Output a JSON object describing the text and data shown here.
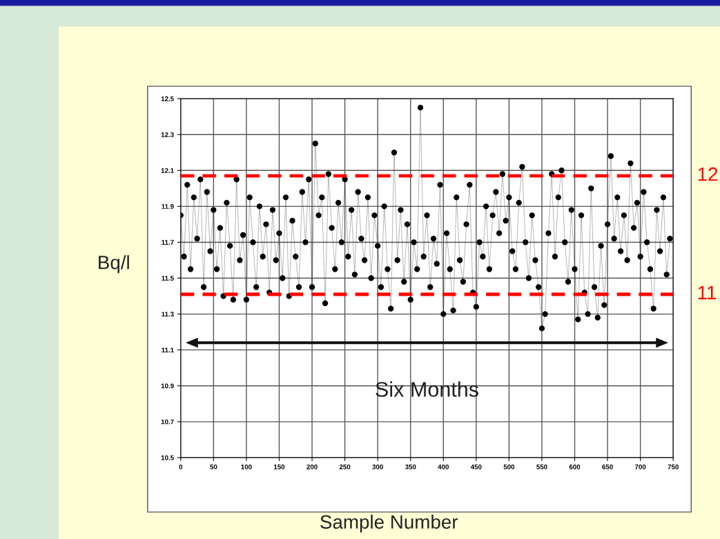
{
  "chart_data": {
    "type": "line",
    "xlabel": "Sample Number",
    "ylabel": "Bq/l",
    "annotations": [
      "Six Months"
    ],
    "x": [
      0,
      5,
      10,
      15,
      20,
      25,
      30,
      35,
      40,
      45,
      50,
      55,
      60,
      65,
      70,
      75,
      80,
      85,
      90,
      95,
      100,
      105,
      110,
      115,
      120,
      125,
      130,
      135,
      140,
      145,
      150,
      155,
      160,
      165,
      170,
      175,
      180,
      185,
      190,
      195,
      200,
      205,
      210,
      215,
      220,
      225,
      230,
      235,
      240,
      245,
      250,
      255,
      260,
      265,
      270,
      275,
      280,
      285,
      290,
      295,
      300,
      305,
      310,
      315,
      320,
      325,
      330,
      335,
      340,
      345,
      350,
      355,
      360,
      365,
      370,
      375,
      380,
      385,
      390,
      395,
      400,
      405,
      410,
      415,
      420,
      425,
      430,
      435,
      440,
      445,
      450,
      455,
      460,
      465,
      470,
      475,
      480,
      485,
      490,
      495,
      500,
      505,
      510,
      515,
      520,
      525,
      530,
      535,
      540,
      545,
      550,
      555,
      560,
      565,
      570,
      575,
      580,
      585,
      590,
      595,
      600,
      605,
      610,
      615,
      620,
      625,
      630,
      635,
      640,
      645,
      650,
      655,
      660,
      665,
      670,
      675,
      680,
      685,
      690,
      695,
      700,
      705,
      710,
      715,
      720,
      725,
      730,
      735,
      740,
      745
    ],
    "series": [
      {
        "color": "#000000",
        "values": [
          11.85,
          11.62,
          12.02,
          11.55,
          11.95,
          11.72,
          12.05,
          11.45,
          11.98,
          11.65,
          11.88,
          11.55,
          11.78,
          11.4,
          11.92,
          11.68,
          11.38,
          12.05,
          11.6,
          11.74,
          11.38,
          11.95,
          11.7,
          11.45,
          11.9,
          11.62,
          11.8,
          11.42,
          11.88,
          11.6,
          11.75,
          11.5,
          11.95,
          11.4,
          11.82,
          11.62,
          11.45,
          11.98,
          11.7,
          12.05,
          11.45,
          12.25,
          11.85,
          11.95,
          11.36,
          12.08,
          11.78,
          11.55,
          11.92,
          11.7,
          12.05,
          11.62,
          11.88,
          11.52,
          11.98,
          11.72,
          11.6,
          11.95,
          11.5,
          11.85,
          11.68,
          11.45,
          11.9,
          11.55,
          11.33,
          12.2,
          11.6,
          11.88,
          11.48,
          11.8,
          11.38,
          11.7,
          11.55,
          12.45,
          11.62,
          11.85,
          11.45,
          11.72,
          11.58,
          12.02,
          11.3,
          11.75,
          11.55,
          11.32,
          11.95,
          11.6,
          11.48,
          11.8,
          12.02,
          11.42,
          11.34,
          11.7,
          11.62,
          11.9,
          11.55,
          11.85,
          11.98,
          11.75,
          12.08,
          11.82,
          11.95,
          11.65,
          11.55,
          11.92,
          12.12,
          11.7,
          11.5,
          11.85,
          11.6,
          11.45,
          11.22,
          11.3,
          11.75,
          12.08,
          11.62,
          11.95,
          12.1,
          11.7,
          11.48,
          11.88,
          11.55,
          11.27,
          11.85,
          11.42,
          11.3,
          12.0,
          11.45,
          11.28,
          11.68,
          11.35,
          11.8,
          12.18,
          11.72,
          11.95,
          11.65,
          11.85,
          11.6,
          12.14,
          11.78,
          11.92,
          11.62,
          11.98,
          11.7,
          11.55,
          11.33,
          11.88,
          11.65,
          11.95,
          11.52,
          11.72
        ]
      }
    ],
    "xlim": [
      0,
      750
    ],
    "xticks": [
      0,
      50,
      100,
      150,
      200,
      250,
      300,
      350,
      400,
      450,
      500,
      550,
      600,
      650,
      700,
      750
    ],
    "ylim": [
      10.5,
      12.5
    ],
    "yticks": [
      10.5,
      10.7,
      10.9,
      11.1,
      11.3,
      11.5,
      11.7,
      11.9,
      12.1,
      12.3,
      12.5
    ],
    "ref_lines": [
      {
        "axis": "y",
        "value": 12.07,
        "label": "12",
        "color": "#ff0000",
        "line_style": "dashed"
      },
      {
        "axis": "y",
        "value": 11.41,
        "label": "11",
        "color": "#ff0000",
        "line_style": "dashed"
      }
    ],
    "grid": true,
    "marker": "circle",
    "line_style": "solid"
  }
}
